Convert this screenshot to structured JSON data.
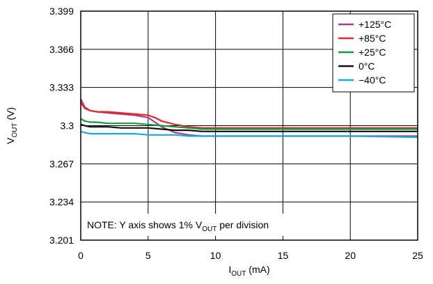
{
  "chart_data": {
    "type": "line",
    "xlabel": {
      "main": "I",
      "sub": "OUT",
      "unit": " (mA)"
    },
    "ylabel": {
      "main": "V",
      "sub": "OUT",
      "unit": " (V)"
    },
    "xlim": [
      0,
      25
    ],
    "ylim": [
      3.201,
      3.399
    ],
    "xticks": [
      "0",
      "5",
      "10",
      "15",
      "20",
      "25"
    ],
    "xtick_values": [
      0,
      5,
      10,
      15,
      20,
      25
    ],
    "yticks": [
      "3.201",
      "3.234",
      "3.267",
      "3.3",
      "3.333",
      "3.366",
      "3.399"
    ],
    "ytick_values": [
      3.201,
      3.234,
      3.267,
      3.3,
      3.333,
      3.366,
      3.399
    ],
    "grid": true,
    "legend_position": "top-right",
    "note": {
      "before": "NOTE: Y axis shows 1% V",
      "sub": "OUT",
      "after": " per division"
    },
    "series": [
      {
        "name": "+125°C",
        "color": "#a8407f",
        "x": [
          0,
          0.3,
          0.7,
          1.2,
          2,
          3,
          4,
          5,
          5.5,
          6,
          7,
          8,
          9,
          10,
          12,
          15,
          20,
          25
        ],
        "y": [
          3.323,
          3.316,
          3.313,
          3.312,
          3.311,
          3.31,
          3.309,
          3.307,
          3.303,
          3.299,
          3.294,
          3.292,
          3.291,
          3.291,
          3.291,
          3.291,
          3.291,
          3.291
        ]
      },
      {
        "name": "+85°C",
        "color": "#e8262a",
        "x": [
          0,
          0.3,
          0.7,
          1.2,
          2,
          3,
          4,
          5,
          5.5,
          6,
          7,
          8,
          9,
          10,
          12,
          15,
          20,
          25
        ],
        "y": [
          3.32,
          3.315,
          3.313,
          3.312,
          3.312,
          3.311,
          3.31,
          3.309,
          3.307,
          3.304,
          3.301,
          3.299,
          3.298,
          3.298,
          3.298,
          3.298,
          3.298,
          3.298
        ]
      },
      {
        "name": "+25°C",
        "color": "#159a48",
        "x": [
          0,
          0.3,
          0.7,
          1.2,
          2,
          3,
          4,
          5,
          6,
          7,
          8,
          9,
          10,
          12,
          15,
          20,
          25
        ],
        "y": [
          3.306,
          3.304,
          3.303,
          3.303,
          3.302,
          3.302,
          3.302,
          3.301,
          3.3,
          3.299,
          3.298,
          3.297,
          3.297,
          3.297,
          3.297,
          3.297,
          3.297
        ]
      },
      {
        "name": "0°C",
        "color": "#111111",
        "x": [
          0,
          0.3,
          0.7,
          1.2,
          2,
          3,
          4,
          5,
          6,
          7,
          8,
          9,
          10,
          12,
          15,
          20,
          25
        ],
        "y": [
          3.301,
          3.3,
          3.299,
          3.299,
          3.299,
          3.298,
          3.298,
          3.298,
          3.297,
          3.296,
          3.296,
          3.295,
          3.295,
          3.295,
          3.295,
          3.295,
          3.295
        ]
      },
      {
        "name": "−40°C",
        "color": "#1aa8e0",
        "x": [
          0,
          0.3,
          0.7,
          1.2,
          2,
          3,
          4,
          5,
          6,
          7,
          8,
          9,
          10,
          12,
          15,
          20,
          25
        ],
        "y": [
          3.295,
          3.294,
          3.293,
          3.293,
          3.293,
          3.293,
          3.293,
          3.292,
          3.292,
          3.292,
          3.291,
          3.291,
          3.291,
          3.291,
          3.291,
          3.291,
          3.29
        ]
      }
    ]
  }
}
